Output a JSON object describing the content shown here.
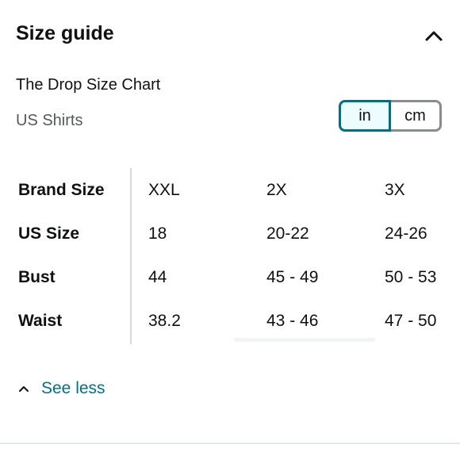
{
  "header": {
    "title": "Size guide"
  },
  "chart": {
    "name": "The Drop Size Chart",
    "category": "US Shirts"
  },
  "units": {
    "options": [
      "in",
      "cm"
    ],
    "selected": "in",
    "accent_color": "#007185"
  },
  "size_table": {
    "rows": [
      {
        "label": "Brand Size",
        "values": [
          "XXL",
          "2X",
          "3X"
        ]
      },
      {
        "label": "US Size",
        "values": [
          "18",
          "20-22",
          "24-26"
        ]
      },
      {
        "label": "Bust",
        "values": [
          "44",
          "45 - 49",
          "50 - 53"
        ]
      },
      {
        "label": "Waist",
        "values": [
          "38.2",
          "43 - 46",
          "47 - 50"
        ]
      }
    ]
  },
  "footer": {
    "see_less_label": "See less",
    "link_color": "#007185"
  }
}
